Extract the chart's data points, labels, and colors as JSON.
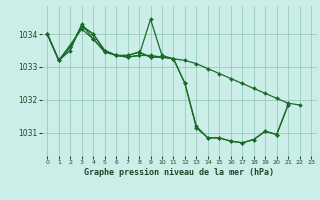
{
  "title": "Graphe pression niveau de la mer (hPa)",
  "bg_color": "#cceee8",
  "grid_color": "#99ccbb",
  "line_color": "#1a6b2a",
  "marker_color": "#1a6b2a",
  "xlim": [
    -0.5,
    23.5
  ],
  "ylim": [
    1030.3,
    1034.85
  ],
  "yticks": [
    1031,
    1032,
    1033,
    1034
  ],
  "xticks": [
    0,
    1,
    2,
    3,
    4,
    5,
    6,
    7,
    8,
    9,
    10,
    11,
    12,
    13,
    14,
    15,
    16,
    17,
    18,
    19,
    20,
    21,
    22,
    23
  ],
  "series": [
    {
      "x": [
        0,
        1,
        2,
        3,
        4,
        5,
        6,
        7,
        8,
        9,
        10,
        11,
        12,
        13,
        14,
        15,
        16,
        17,
        18,
        19,
        20,
        21
      ],
      "y": [
        1034.0,
        1033.2,
        1033.5,
        1034.3,
        1033.85,
        1033.45,
        1033.35,
        1033.3,
        1033.35,
        1034.45,
        1033.35,
        1033.25,
        1032.5,
        1031.2,
        1030.85,
        1030.85,
        1030.75,
        1030.7,
        1030.8,
        1031.05,
        1030.95,
        1031.85
      ]
    },
    {
      "x": [
        0,
        1,
        2,
        3,
        4,
        5,
        6,
        7,
        8,
        9,
        10,
        11,
        12,
        13,
        14,
        15,
        16,
        17,
        18,
        19,
        20,
        21,
        22
      ],
      "y": [
        1034.0,
        1033.2,
        1033.6,
        1034.25,
        1034.0,
        1033.5,
        1033.35,
        1033.35,
        1033.45,
        1033.3,
        1033.3,
        1033.25,
        1033.2,
        1033.1,
        1032.95,
        1032.8,
        1032.65,
        1032.5,
        1032.35,
        1032.2,
        1032.05,
        1031.9,
        1031.85
      ]
    },
    {
      "x": [
        0,
        1,
        2,
        3,
        4,
        5,
        6,
        7,
        8,
        9,
        10
      ],
      "y": [
        1034.0,
        1033.2,
        1033.6,
        1034.25,
        1034.0,
        1033.5,
        1033.35,
        1033.35,
        1033.45,
        1033.3,
        1033.3
      ]
    },
    {
      "x": [
        0,
        1,
        3,
        4,
        5,
        6,
        7,
        8,
        9,
        10,
        11,
        12,
        13,
        14,
        15,
        16,
        17,
        18,
        19,
        20,
        21
      ],
      "y": [
        1034.0,
        1033.2,
        1034.15,
        1033.85,
        1033.5,
        1033.35,
        1033.3,
        1033.35,
        1033.35,
        1033.3,
        1033.25,
        1032.5,
        1031.15,
        1030.85,
        1030.85,
        1030.75,
        1030.7,
        1030.8,
        1031.05,
        1030.95,
        1031.85
      ]
    }
  ]
}
